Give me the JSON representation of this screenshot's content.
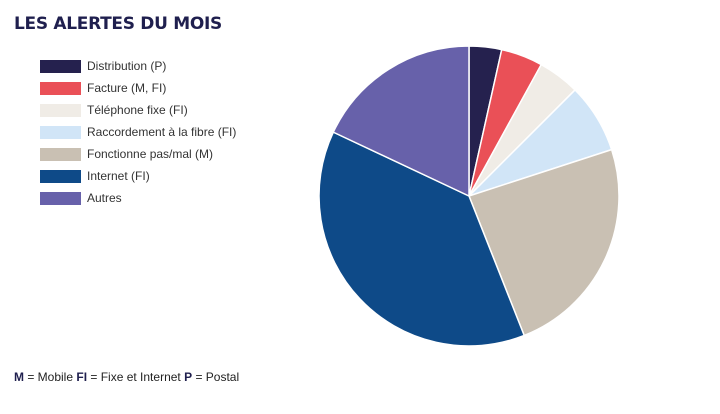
{
  "chart_data": {
    "type": "pie",
    "title": "LES ALERTES DU MOIS",
    "legend_position": "left",
    "start_angle_deg": 0,
    "direction": "clockwise",
    "slices": [
      {
        "label": "Distribution (P)",
        "value": 3.5,
        "color": "#25214e"
      },
      {
        "label": "Facture (M, FI)",
        "value": 4.5,
        "color": "#ea5057"
      },
      {
        "label": "Téléphone fixe (FI)",
        "value": 4.5,
        "color": "#f0ece6"
      },
      {
        "label": "Raccordement à la fibre (FI)",
        "value": 7.5,
        "color": "#d1e5f7"
      },
      {
        "label": "Fonctionne pas/mal (M)",
        "value": 24,
        "color": "#c9c0b3"
      },
      {
        "label": "Internet (FI)",
        "value": 38,
        "color": "#0e4a88"
      },
      {
        "label": "Autres",
        "value": 18,
        "color": "#6761aa"
      }
    ]
  },
  "footnote": {
    "m_code": "M",
    "m_text": " = Mobile ",
    "fi_code": "FI",
    "fi_text": " = Fixe et Internet ",
    "p_code": "P",
    "p_text": " = Postal"
  }
}
